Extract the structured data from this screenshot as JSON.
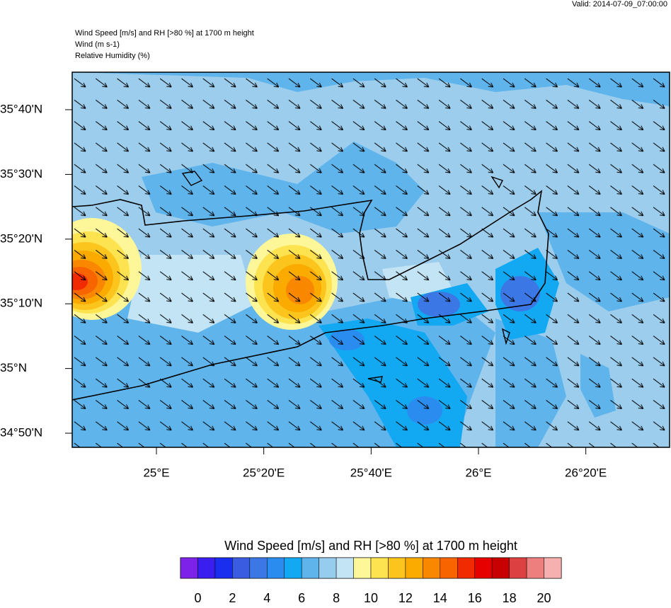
{
  "header": {
    "valid": "Valid: 2014-07-09_07:00:00",
    "lines": [
      "Wind Speed [m/s] and RH [>80 %] at 1700 m height",
      "Wind   (m s-1)",
      "Relative Humidity   (%)"
    ]
  },
  "map": {
    "xlim": [
      24.7385,
      26.5934
    ],
    "ylim": [
      34.7969,
      35.7633
    ],
    "xticks": [
      {
        "value": 25,
        "label": "25°E"
      },
      {
        "value": 25.3333,
        "label": "25°20'E"
      },
      {
        "value": 25.6667,
        "label": "25°40'E"
      },
      {
        "value": 26,
        "label": "26°E"
      },
      {
        "value": 26.3333,
        "label": "26°20'E"
      }
    ],
    "yticks": [
      {
        "value": 35.6667,
        "label": "35°40'N"
      },
      {
        "value": 35.5,
        "label": "35°30'N"
      },
      {
        "value": 35.3333,
        "label": "35°20'N"
      },
      {
        "value": 35.1667,
        "label": "35°10'N"
      },
      {
        "value": 35,
        "label": "35°N"
      },
      {
        "value": 34.8333,
        "label": "34°50'N"
      }
    ]
  },
  "colorbar": {
    "title": "Wind Speed [m/s] and RH [>80 %] at 1700 m height",
    "lim": [
      -1,
      21
    ],
    "colors": [
      "#7d22e8",
      "#3a1ef0",
      "#1a2ef0",
      "#3a5ce0",
      "#3b78e6",
      "#2b8cf0",
      "#12a8f2",
      "#5fb4ec",
      "#96ccee",
      "#c2e4f4",
      "#fef79a",
      "#fde350",
      "#fbc51e",
      "#fbaa00",
      "#f98800",
      "#f86400",
      "#f22a00",
      "#e60000",
      "#c80000",
      "#dc4040",
      "#ee7f7f",
      "#f6b0b0"
    ],
    "ticks": [
      0,
      2,
      4,
      6,
      8,
      10,
      12,
      14,
      16,
      18,
      20
    ]
  }
}
